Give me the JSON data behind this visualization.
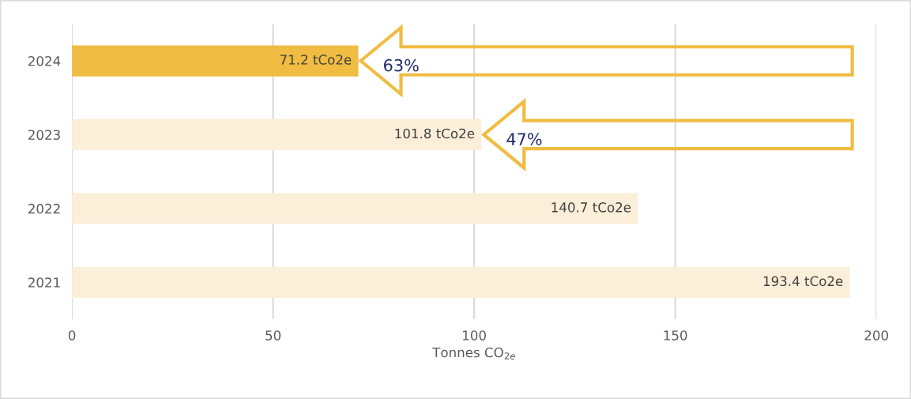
{
  "chart_data": {
    "type": "bar",
    "orientation": "horizontal",
    "xlabel": "Tonnes CO$_{2e}$",
    "categories": [
      "2024",
      "2023",
      "2022",
      "2021"
    ],
    "values": [
      71.2,
      101.8,
      140.7,
      193.4
    ],
    "colors": [
      "#f0bc42",
      "#fcefd9",
      "#fcefd9",
      "#fcefd9"
    ],
    "value_labels": [
      "71.2 tCo2e",
      "101.8 tCo2e",
      "140.7 tCo2e",
      "193.4 tCo2e"
    ],
    "xlim": [
      0,
      200
    ],
    "xticks": [
      0,
      50,
      100,
      150,
      200
    ],
    "grid": "x",
    "annotations": [
      {
        "text": "63%",
        "x": 71.2,
        "y": "2024"
      },
      {
        "text": "47%",
        "x": 101.8,
        "y": "2023"
      }
    ]
  }
}
